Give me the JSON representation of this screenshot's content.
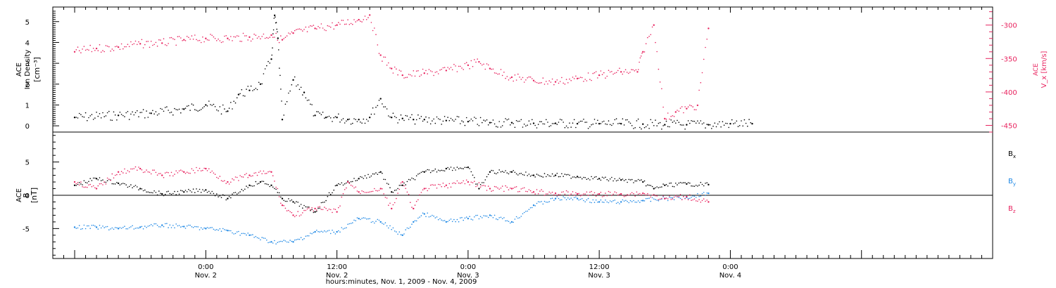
{
  "chart_data": [
    {
      "type": "scatter",
      "panel": "top",
      "ylabel_left": [
        "ACE",
        "Ion Density",
        "[cm⁻³]"
      ],
      "ylabel_right": "V_x [km/s]",
      "ylabel_right_text": "ACE",
      "ylabel_right_var": "Vx",
      "ylabel_right_units": "[km/s]",
      "ylim_left": [
        -0.3,
        5.7
      ],
      "yticks_left": [
        0,
        1,
        2,
        3,
        4,
        5
      ],
      "ylim_right": [
        -460,
        -273
      ],
      "yticks_right": [
        -300,
        -350,
        -400,
        -450
      ],
      "series": [
        {
          "axis": "left",
          "color": "#000000",
          "x": [
            -12,
            -8,
            -5,
            -2,
            0,
            2,
            3,
            4,
            5,
            6,
            6.3,
            6.6,
            7,
            8,
            9,
            10,
            11,
            12,
            13,
            14,
            15,
            16,
            17,
            18,
            19,
            20,
            22,
            24,
            26,
            28,
            30,
            32,
            34,
            36,
            38,
            40,
            42,
            44,
            46,
            48,
            50
          ],
          "y": [
            0.4,
            0.5,
            0.6,
            0.8,
            1.0,
            0.7,
            1.5,
            1.7,
            2.0,
            3.2,
            5.3,
            4.2,
            0.3,
            2.2,
            1.6,
            0.5,
            0.4,
            0.4,
            0.3,
            0.3,
            0.4,
            1.3,
            0.4,
            0.35,
            0.3,
            0.3,
            0.25,
            0.2,
            0.15,
            0.15,
            0.12,
            0.12,
            0.1,
            0.1,
            0.1,
            0.08,
            0.05,
            0.05,
            0.05,
            0.1,
            0.1
          ]
        },
        {
          "axis": "right",
          "color": "#e8235f",
          "x": [
            -12,
            -10,
            -8,
            -6,
            -4,
            -2,
            0,
            2,
            4,
            6,
            7,
            8,
            10,
            12,
            14,
            15,
            16,
            17,
            18,
            20,
            22,
            24,
            25,
            26,
            28,
            30,
            32,
            34,
            36,
            38,
            39.5,
            40,
            41,
            42,
            43,
            44,
            45,
            46
          ],
          "y": [
            -340,
            -335,
            -333,
            -328,
            -327,
            -322,
            -320,
            -320,
            -318,
            -315,
            -322,
            -312,
            -305,
            -300,
            -292,
            -285,
            -345,
            -365,
            -375,
            -372,
            -368,
            -360,
            -355,
            -365,
            -378,
            -383,
            -385,
            -380,
            -375,
            -370,
            -370,
            -340,
            -300,
            -440,
            -430,
            -425,
            -420,
            -305
          ]
        }
      ]
    },
    {
      "type": "scatter",
      "panel": "bottom",
      "ylabel_left": [
        "ACE",
        "B",
        "[nT]"
      ],
      "ylim": [
        -9.5,
        9.5
      ],
      "yticks": [
        -5,
        0,
        5
      ],
      "zero_line": true,
      "legend": [
        "Bx",
        "By",
        "Bz"
      ],
      "legend_text": [
        "B",
        "B",
        "B"
      ],
      "legend_sub": [
        "x",
        "y",
        "z"
      ],
      "legend_placement": "right",
      "series": [
        {
          "name": "Bx",
          "color": "#000000",
          "x": [
            -12,
            -10,
            -8,
            -6,
            -4,
            -2,
            0,
            2,
            4,
            5,
            6,
            7,
            8,
            10,
            12,
            14,
            16,
            17,
            18,
            20,
            22,
            24,
            25,
            26,
            28,
            30,
            32,
            34,
            36,
            38,
            40,
            41,
            42,
            44,
            46
          ],
          "y": [
            1.5,
            2.5,
            1.8,
            1.0,
            0.2,
            0.5,
            0.8,
            -0.5,
            1.5,
            2.0,
            1.5,
            -0.5,
            -1.0,
            -2.5,
            1.5,
            2.5,
            3.5,
            0.5,
            1.5,
            3.5,
            4.0,
            4.2,
            1.0,
            3.5,
            3.5,
            3.0,
            3.0,
            2.8,
            2.5,
            2.3,
            2.0,
            1.0,
            1.5,
            1.7,
            1.6
          ]
        },
        {
          "name": "By",
          "color": "#1e88e5",
          "x": [
            -12,
            -10,
            -8,
            -6,
            -4,
            -2,
            0,
            2,
            4,
            6,
            8,
            10,
            12,
            14,
            16,
            18,
            19,
            20,
            22,
            24,
            26,
            28,
            30,
            32,
            34,
            36,
            38,
            40,
            42,
            44,
            46
          ],
          "y": [
            -4.8,
            -4.8,
            -5.0,
            -4.8,
            -4.5,
            -4.7,
            -5.0,
            -5.3,
            -6.0,
            -7.0,
            -7.0,
            -5.5,
            -5.5,
            -3.5,
            -4.0,
            -6.0,
            -4.0,
            -2.8,
            -4.0,
            -3.5,
            -3.0,
            -4.0,
            -1.5,
            -0.5,
            -0.5,
            -1.0,
            -1.0,
            -0.8,
            -0.5,
            -0.3,
            0.3
          ]
        },
        {
          "name": "Bz",
          "color": "#e8235f",
          "x": [
            -12,
            -10,
            -8,
            -6,
            -4,
            -2,
            0,
            2,
            4,
            6,
            7,
            8,
            10,
            12,
            13,
            14,
            16,
            17,
            18,
            19,
            20,
            22,
            24,
            26,
            28,
            30,
            32,
            34,
            36,
            38,
            40,
            42,
            44,
            46
          ],
          "y": [
            2.0,
            1.0,
            3.5,
            4.0,
            3.0,
            3.5,
            4.0,
            2.0,
            3.0,
            3.5,
            -1.5,
            -3.0,
            -2.0,
            -2.5,
            2.0,
            0.5,
            1.0,
            -2.0,
            2.0,
            -2.0,
            1.0,
            1.5,
            2.0,
            1.0,
            1.0,
            0.5,
            0.3,
            0.2,
            0.2,
            0.2,
            0.3,
            -0.5,
            -0.2,
            -1.0
          ]
        }
      ]
    }
  ],
  "xaxis": {
    "xlim_hours": [
      -14,
      72
    ],
    "ticks": [
      {
        "h": 0,
        "time": "0:00",
        "date": "Nov. 2"
      },
      {
        "h": 12,
        "time": "12:00",
        "date": "Nov. 2"
      },
      {
        "h": 24,
        "time": "0:00",
        "date": "Nov. 3"
      },
      {
        "h": 36,
        "time": "12:00",
        "date": "Nov. 3"
      },
      {
        "h": 48,
        "time": "0:00",
        "date": "Nov. 4"
      }
    ],
    "xlabel": "hours:minutes, Nov.  1, 2009 - Nov.  4, 2009"
  }
}
